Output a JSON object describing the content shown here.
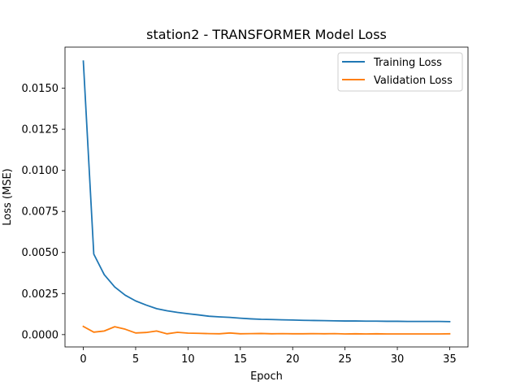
{
  "chart_data": {
    "type": "line",
    "title": "station2 - TRANSFORMER Model Loss",
    "xlabel": "Epoch",
    "ylabel": "Loss (MSE)",
    "xlim": [
      -1.75,
      36.75
    ],
    "ylim": [
      -0.00075,
      0.0175
    ],
    "xticks": [
      0,
      5,
      10,
      15,
      20,
      25,
      30,
      35
    ],
    "xtick_labels": [
      "0",
      "5",
      "10",
      "15",
      "20",
      "25",
      "30",
      "35"
    ],
    "yticks": [
      0.0,
      0.0025,
      0.005,
      0.0075,
      0.01,
      0.0125,
      0.015
    ],
    "ytick_labels": [
      "0.0000",
      "0.0025",
      "0.0050",
      "0.0075",
      "0.0100",
      "0.0125",
      "0.0150"
    ],
    "grid": false,
    "legend_position": "upper-right",
    "x": [
      0,
      1,
      2,
      3,
      4,
      5,
      6,
      7,
      8,
      9,
      10,
      11,
      12,
      13,
      14,
      15,
      16,
      17,
      18,
      19,
      20,
      21,
      22,
      23,
      24,
      25,
      26,
      27,
      28,
      29,
      30,
      31,
      32,
      33,
      34,
      35
    ],
    "series": [
      {
        "name": "Training Loss",
        "color": "#1f77b4",
        "values": [
          0.01665,
          0.0049,
          0.00365,
          0.0029,
          0.0024,
          0.00205,
          0.0018,
          0.00158,
          0.00145,
          0.00135,
          0.00127,
          0.0012,
          0.00112,
          0.00108,
          0.00105,
          0.001,
          0.00096,
          0.00093,
          0.00092,
          0.0009,
          0.00089,
          0.00087,
          0.00086,
          0.00085,
          0.00084,
          0.00083,
          0.00083,
          0.00082,
          0.00082,
          0.00081,
          0.00081,
          0.0008,
          0.0008,
          0.0008,
          0.0008,
          0.00079
        ]
      },
      {
        "name": "Validation Loss",
        "color": "#ff7f0e",
        "values": [
          0.0005,
          0.00015,
          0.00022,
          0.00048,
          0.00033,
          0.0001,
          0.00013,
          0.00022,
          5e-05,
          0.00014,
          9e-05,
          8e-05,
          6e-05,
          5e-05,
          0.0001,
          5e-05,
          6e-05,
          7e-05,
          5e-05,
          6e-05,
          5e-05,
          5e-05,
          6e-05,
          5e-05,
          6e-05,
          4e-05,
          5e-05,
          4e-05,
          5e-05,
          4e-05,
          4e-05,
          4e-05,
          4e-05,
          4e-05,
          4e-05,
          5e-05
        ]
      }
    ]
  }
}
